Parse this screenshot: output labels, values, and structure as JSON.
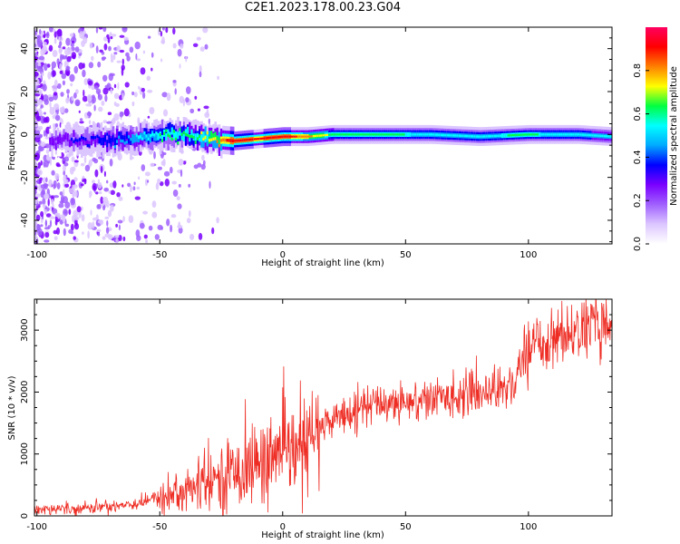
{
  "title": "C2E1.2023.178.00.23.G04",
  "colors": {
    "snr_line": "#ee2d24",
    "frame": "#000000",
    "colormap": [
      "#ffffff",
      "#dcc6ff",
      "#a060ff",
      "#7a00ff",
      "#0000ff",
      "#00aaff",
      "#00ffff",
      "#00ff40",
      "#ffff00",
      "#ff8000",
      "#ff0000",
      "#ff0060"
    ]
  },
  "chart_data": [
    {
      "type": "heatmap",
      "title": "",
      "xlabel": "Height of straight line (km)",
      "ylabel": "Frequency (Hz)",
      "xlim": [
        -101,
        134
      ],
      "ylim": [
        -51,
        50
      ],
      "xticks": [
        -100,
        -50,
        0,
        50,
        100
      ],
      "yticks": [
        -40,
        -20,
        0,
        20,
        40
      ],
      "colorbar": {
        "label": "Normalized spectral amplitude",
        "range": [
          0,
          1
        ],
        "ticks": [
          0.0,
          0.2,
          0.4,
          0.6,
          0.8
        ]
      },
      "ridge": {
        "description_points_x": [
          -90,
          -80,
          -70,
          -60,
          -50,
          -40,
          -30,
          -20,
          -10,
          0,
          10,
          20,
          40,
          60,
          80,
          100,
          120,
          134
        ],
        "center_freq": [
          -3,
          -3,
          -3,
          -2,
          0,
          0,
          -2,
          -3,
          -2,
          -1,
          -1,
          0,
          0,
          0,
          -1,
          0,
          0,
          -1
        ],
        "peak_amplitude": [
          0.3,
          0.35,
          0.4,
          0.5,
          0.6,
          0.65,
          0.7,
          0.95,
          0.9,
          0.95,
          0.8,
          0.65,
          0.6,
          0.58,
          0.58,
          0.6,
          0.55,
          0.5
        ]
      }
    },
    {
      "type": "line",
      "title": "",
      "xlabel": "Height of straight line (km)",
      "ylabel": "SNR (10 * v/v)",
      "xlim": [
        -101,
        134
      ],
      "ylim": [
        0,
        3500
      ],
      "xticks": [
        -100,
        -50,
        0,
        50,
        100
      ],
      "yticks": [
        0,
        1000,
        2000,
        3000
      ],
      "trend": {
        "x": [
          -101,
          -90,
          -80,
          -70,
          -60,
          -50,
          -40,
          -30,
          -20,
          -10,
          0,
          5,
          10,
          15,
          20,
          30,
          40,
          50,
          60,
          70,
          80,
          90,
          95,
          98,
          100,
          110,
          120,
          134
        ],
        "y": [
          100,
          120,
          130,
          160,
          200,
          300,
          400,
          520,
          700,
          850,
          1000,
          1000,
          1150,
          1400,
          1550,
          1750,
          1820,
          1850,
          1880,
          1950,
          2000,
          2080,
          2150,
          2600,
          2750,
          2850,
          3000,
          3150
        ]
      }
    }
  ]
}
